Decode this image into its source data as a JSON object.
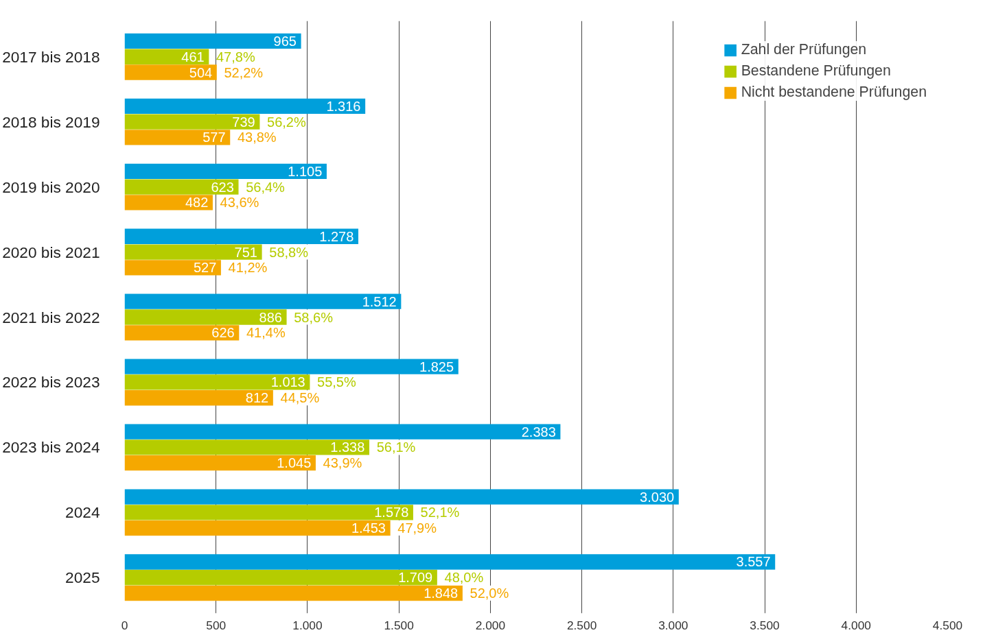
{
  "chart_data": {
    "type": "bar",
    "orientation": "horizontal",
    "categories": [
      "2017 bis 2018",
      "2018 bis 2019",
      "2019 bis 2020",
      "2020 bis 2021",
      "2021 bis 2022",
      "2022 bis 2023",
      "2023 bis 2024",
      "2024",
      "2025"
    ],
    "series": [
      {
        "name": "Zahl der Prüfungen",
        "color": "#009fdb",
        "values": [
          965,
          1316,
          1105,
          1278,
          1512,
          1825,
          2383,
          3030,
          3557
        ],
        "value_labels": [
          "965",
          "1.316",
          "1.105",
          "1.278",
          "1.512",
          "1.825",
          "2.383",
          "3.030",
          "3.557"
        ]
      },
      {
        "name": "Bestandene Prüfungen",
        "color": "#b5cc00",
        "values": [
          461,
          739,
          623,
          751,
          886,
          1013,
          1338,
          1578,
          1709
        ],
        "value_labels": [
          "461",
          "739",
          "623",
          "751",
          "886",
          "1.013",
          "1.338",
          "1.578",
          "1.709"
        ]
      },
      {
        "name": "Nicht bestandene Prüfungen",
        "color": "#f5a800",
        "values": [
          504,
          577,
          482,
          527,
          626,
          812,
          1045,
          1453,
          1848
        ],
        "value_labels": [
          "504",
          "577",
          "482",
          "527",
          "626",
          "812",
          "1.045",
          "1.453",
          "1.848"
        ]
      }
    ],
    "annotations": [
      "47,8%",
      "52,2%",
      "56,2%",
      "43,8%",
      "56,4%",
      "43,6%",
      "58,8%",
      "41,2%",
      "58,6%",
      "41,4%",
      "55,5%",
      "44,5%",
      "56,1%",
      "43,9%",
      "52,1%",
      "47,9%",
      "48,0%",
      "52,0%"
    ],
    "xlim": [
      0,
      4500
    ],
    "xticks": [
      0,
      500,
      {
        "value": 1000,
        "label": "1.000"
      },
      {
        "value": 1500,
        "label": "1.500"
      },
      {
        "value": 2000,
        "label": "2.000"
      },
      {
        "value": 2500,
        "label": "2.500"
      },
      {
        "value": 3000,
        "label": "3.000"
      },
      {
        "value": 3500,
        "label": "3.500"
      },
      {
        "value": 4000,
        "label": "4.000"
      },
      {
        "value": 4500,
        "label": "4.500"
      }
    ],
    "grid": "x",
    "legend": "top right"
  }
}
